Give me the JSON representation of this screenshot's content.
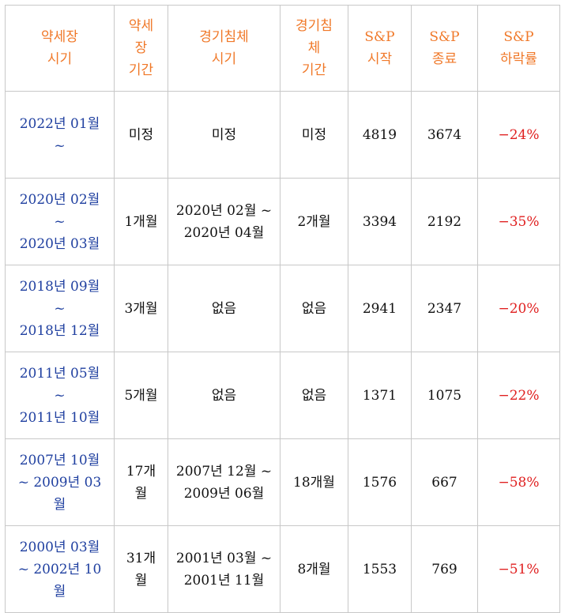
{
  "headers": {
    "bear_period": [
      "약세장",
      "시기"
    ],
    "bear_duration": [
      "약세",
      "장",
      "기간"
    ],
    "recession_period": [
      "경기침체",
      "시기"
    ],
    "recession_duration": [
      "경기침",
      "체",
      "기간"
    ],
    "sp_start": [
      "S&P",
      "시작"
    ],
    "sp_end": [
      "S&P",
      "종료"
    ],
    "sp_drop": [
      "S&P",
      "하락률"
    ]
  },
  "rows": [
    {
      "bear_period": [
        "2022년 01월",
        "~"
      ],
      "bear_duration": [
        "미정"
      ],
      "recession_period": [
        "미정"
      ],
      "recession_duration": [
        "미정"
      ],
      "sp_start": "4819",
      "sp_end": "3674",
      "sp_drop": "−24%"
    },
    {
      "bear_period": [
        "2020년 02월",
        "~",
        "2020년 03월"
      ],
      "bear_duration": [
        "1개월"
      ],
      "recession_period": [
        "2020년 02월 ~",
        "2020년 04월"
      ],
      "recession_duration": [
        "2개월"
      ],
      "sp_start": "3394",
      "sp_end": "2192",
      "sp_drop": "−35%"
    },
    {
      "bear_period": [
        "2018년 09월",
        "~",
        "2018년 12월"
      ],
      "bear_duration": [
        "3개월"
      ],
      "recession_period": [
        "없음"
      ],
      "recession_duration": [
        "없음"
      ],
      "sp_start": "2941",
      "sp_end": "2347",
      "sp_drop": "−20%"
    },
    {
      "bear_period": [
        "2011년 05월",
        "~",
        "2011년 10월"
      ],
      "bear_duration": [
        "5개월"
      ],
      "recession_period": [
        "없음"
      ],
      "recession_duration": [
        "없음"
      ],
      "sp_start": "1371",
      "sp_end": "1075",
      "sp_drop": "−22%"
    },
    {
      "bear_period": [
        "2007년 10월",
        "~ 2009년 03",
        "월"
      ],
      "bear_duration": [
        "17개",
        "월"
      ],
      "recession_period": [
        "2007년 12월 ~",
        "2009년 06월"
      ],
      "recession_duration": [
        "18개월"
      ],
      "sp_start": "1576",
      "sp_end": "667",
      "sp_drop": "−58%"
    },
    {
      "bear_period": [
        "2000년 03월",
        "~ 2002년 10",
        "월"
      ],
      "bear_duration": [
        "31개",
        "월"
      ],
      "recession_period": [
        "2001년 03월 ~",
        "2001년 11월"
      ],
      "recession_duration": [
        "8개월"
      ],
      "sp_start": "1553",
      "sp_end": "769",
      "sp_drop": "−51%"
    }
  ],
  "colors": {
    "header_text": "#f07828",
    "period_text": "#2040a0",
    "drop_text": "#e02020",
    "body_text": "#111111",
    "border": "#c8c8c8"
  }
}
